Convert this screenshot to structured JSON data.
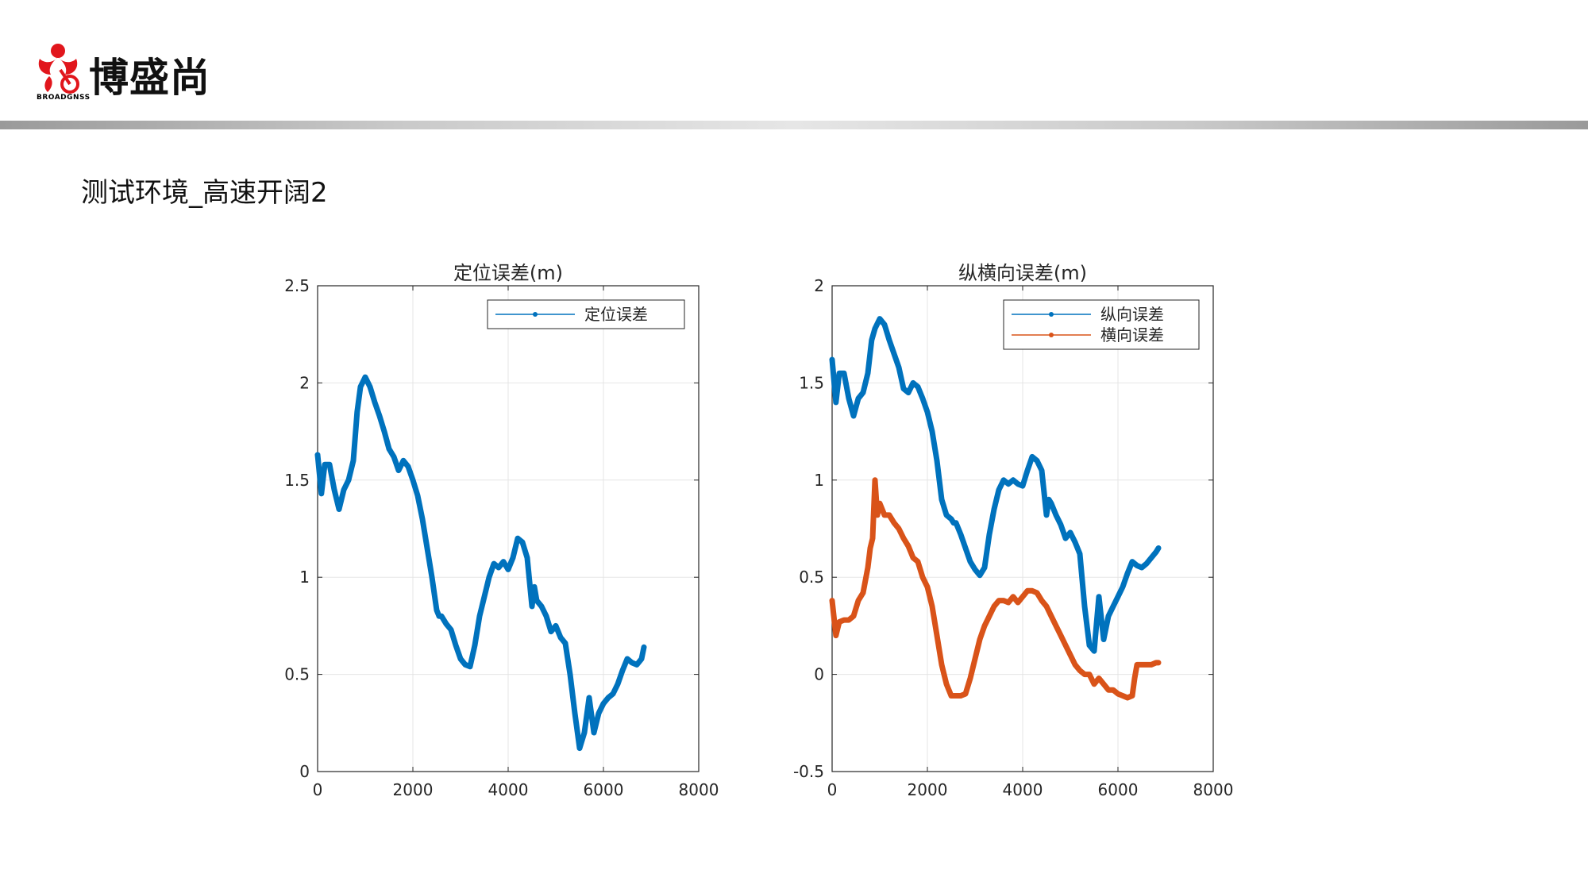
{
  "brand": {
    "name": "博盛尚",
    "sub": "BROADGNSS"
  },
  "slide": {
    "title": "测试环境_高速开阔2"
  },
  "colors": {
    "blue": "#0072BD",
    "orange": "#D95319",
    "axis": "#262626",
    "grid": "#e5e5e5"
  },
  "chart_data": [
    {
      "type": "line",
      "title": "定位误差(m)",
      "xlabel": "",
      "ylabel": "",
      "xlim": [
        0,
        8000
      ],
      "ylim": [
        0,
        2.5
      ],
      "xticks": [
        "0",
        "2000",
        "4000",
        "6000",
        "8000"
      ],
      "yticks": [
        "0",
        "0.5",
        "1",
        "1.5",
        "2",
        "2.5"
      ],
      "grid": true,
      "legend_position": "top-right",
      "series": [
        {
          "name": "定位误差",
          "color": "#0072BD",
          "x": [
            0,
            80,
            150,
            250,
            350,
            450,
            550,
            650,
            750,
            830,
            900,
            1000,
            1100,
            1200,
            1300,
            1400,
            1500,
            1600,
            1700,
            1800,
            1900,
            2000,
            2100,
            2200,
            2300,
            2400,
            2500,
            2550,
            2600,
            2700,
            2800,
            2900,
            3000,
            3100,
            3200,
            3300,
            3400,
            3500,
            3600,
            3700,
            3800,
            3900,
            4000,
            4100,
            4200,
            4300,
            4400,
            4500,
            4550,
            4600,
            4700,
            4800,
            4900,
            5000,
            5100,
            5200,
            5300,
            5400,
            5500,
            5600,
            5700,
            5800,
            5900,
            6000,
            6100,
            6200,
            6300,
            6400,
            6500,
            6600,
            6700,
            6800,
            6850
          ],
          "y": [
            1.63,
            1.43,
            1.58,
            1.58,
            1.45,
            1.35,
            1.45,
            1.5,
            1.6,
            1.85,
            1.98,
            2.03,
            1.98,
            1.9,
            1.83,
            1.75,
            1.66,
            1.62,
            1.55,
            1.6,
            1.57,
            1.5,
            1.42,
            1.3,
            1.15,
            1.0,
            0.83,
            0.8,
            0.8,
            0.76,
            0.73,
            0.65,
            0.58,
            0.55,
            0.54,
            0.65,
            0.8,
            0.9,
            1.0,
            1.07,
            1.05,
            1.08,
            1.04,
            1.1,
            1.2,
            1.18,
            1.1,
            0.85,
            0.95,
            0.88,
            0.85,
            0.8,
            0.72,
            0.75,
            0.69,
            0.66,
            0.5,
            0.3,
            0.12,
            0.2,
            0.38,
            0.2,
            0.3,
            0.35,
            0.38,
            0.4,
            0.45,
            0.52,
            0.58,
            0.56,
            0.55,
            0.58,
            0.64
          ]
        }
      ]
    },
    {
      "type": "line",
      "title": "纵横向误差(m)",
      "xlabel": "",
      "ylabel": "",
      "xlim": [
        0,
        8000
      ],
      "ylim": [
        -0.5,
        2
      ],
      "xticks": [
        "0",
        "2000",
        "4000",
        "6000",
        "8000"
      ],
      "yticks": [
        "-0.5",
        "0",
        "0.5",
        "1",
        "1.5",
        "2"
      ],
      "grid": true,
      "legend_position": "top-right",
      "series": [
        {
          "name": "纵向误差",
          "color": "#0072BD",
          "x": [
            0,
            80,
            150,
            250,
            350,
            450,
            550,
            650,
            750,
            830,
            900,
            1000,
            1100,
            1200,
            1300,
            1400,
            1500,
            1600,
            1700,
            1800,
            1900,
            2000,
            2100,
            2200,
            2300,
            2400,
            2500,
            2550,
            2600,
            2700,
            2800,
            2900,
            3000,
            3100,
            3200,
            3300,
            3400,
            3500,
            3600,
            3700,
            3800,
            3900,
            4000,
            4100,
            4200,
            4300,
            4400,
            4500,
            4550,
            4600,
            4700,
            4800,
            4900,
            5000,
            5100,
            5200,
            5300,
            5400,
            5500,
            5600,
            5700,
            5800,
            5900,
            6000,
            6100,
            6200,
            6300,
            6400,
            6500,
            6600,
            6700,
            6800,
            6850
          ],
          "y": [
            1.62,
            1.4,
            1.55,
            1.55,
            1.42,
            1.33,
            1.42,
            1.45,
            1.55,
            1.72,
            1.78,
            1.83,
            1.8,
            1.72,
            1.65,
            1.58,
            1.47,
            1.45,
            1.5,
            1.48,
            1.42,
            1.35,
            1.25,
            1.1,
            0.9,
            0.82,
            0.8,
            0.78,
            0.78,
            0.72,
            0.65,
            0.58,
            0.54,
            0.51,
            0.55,
            0.72,
            0.85,
            0.95,
            1.0,
            0.98,
            1.0,
            0.98,
            0.97,
            1.05,
            1.12,
            1.1,
            1.05,
            0.82,
            0.9,
            0.88,
            0.82,
            0.77,
            0.7,
            0.73,
            0.68,
            0.62,
            0.35,
            0.15,
            0.12,
            0.4,
            0.18,
            0.3,
            0.35,
            0.4,
            0.45,
            0.52,
            0.58,
            0.56,
            0.55,
            0.57,
            0.6,
            0.63,
            0.65
          ]
        },
        {
          "name": "横向误差",
          "color": "#D95319",
          "x": [
            0,
            80,
            150,
            250,
            350,
            450,
            550,
            650,
            750,
            800,
            850,
            900,
            950,
            1000,
            1100,
            1200,
            1300,
            1400,
            1500,
            1600,
            1700,
            1800,
            1900,
            2000,
            2100,
            2200,
            2300,
            2400,
            2500,
            2600,
            2700,
            2800,
            2900,
            3000,
            3100,
            3200,
            3300,
            3400,
            3500,
            3600,
            3700,
            3800,
            3900,
            4000,
            4100,
            4200,
            4300,
            4400,
            4500,
            4600,
            4700,
            4800,
            4900,
            5000,
            5100,
            5200,
            5300,
            5400,
            5500,
            5600,
            5700,
            5800,
            5900,
            6000,
            6100,
            6200,
            6300,
            6350,
            6400,
            6500,
            6600,
            6700,
            6800,
            6850
          ],
          "y": [
            0.38,
            0.2,
            0.27,
            0.28,
            0.28,
            0.3,
            0.38,
            0.42,
            0.55,
            0.65,
            0.7,
            1.0,
            0.82,
            0.88,
            0.82,
            0.82,
            0.78,
            0.75,
            0.7,
            0.66,
            0.6,
            0.58,
            0.5,
            0.45,
            0.35,
            0.2,
            0.05,
            -0.05,
            -0.11,
            -0.11,
            -0.11,
            -0.1,
            -0.02,
            0.08,
            0.18,
            0.25,
            0.3,
            0.35,
            0.38,
            0.38,
            0.37,
            0.4,
            0.37,
            0.4,
            0.43,
            0.43,
            0.42,
            0.38,
            0.35,
            0.3,
            0.25,
            0.2,
            0.15,
            0.1,
            0.05,
            0.02,
            0.0,
            0.0,
            -0.05,
            -0.02,
            -0.05,
            -0.08,
            -0.08,
            -0.1,
            -0.11,
            -0.12,
            -0.11,
            -0.02,
            0.05,
            0.05,
            0.05,
            0.05,
            0.06,
            0.06
          ]
        }
      ]
    }
  ]
}
